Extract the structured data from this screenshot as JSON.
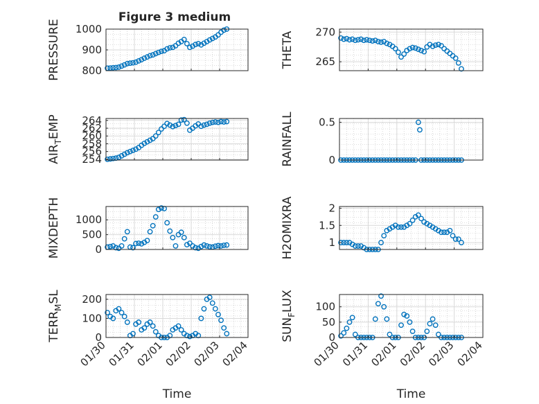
{
  "title": "Figure 3 medium",
  "colors": {
    "marker": "#0072BD",
    "axis": "#262626",
    "grid": "#d9d9d9",
    "minor_grid": "#bdbdbd"
  },
  "chart_data": [
    {
      "type": "scatter",
      "ylabel": "PRESSURE",
      "yticks": [
        "800",
        "900",
        "1000"
      ],
      "ylim": [
        800,
        1000
      ],
      "xlim": [
        0,
        5
      ],
      "xticks": [],
      "xlabel": "",
      "x": [
        0.05,
        0.15,
        0.25,
        0.35,
        0.45,
        0.55,
        0.65,
        0.75,
        0.85,
        0.95,
        1.05,
        1.15,
        1.25,
        1.35,
        1.45,
        1.55,
        1.65,
        1.75,
        1.85,
        1.95,
        2.05,
        2.15,
        2.25,
        2.35,
        2.45,
        2.55,
        2.65,
        2.75,
        2.85,
        2.95,
        3.05,
        3.15,
        3.25,
        3.35,
        3.45,
        3.55,
        3.65,
        3.75,
        3.85,
        3.95,
        4.05,
        4.15,
        4.25
      ],
      "y": [
        812,
        813,
        814,
        815,
        817,
        822,
        828,
        834,
        836,
        838,
        841,
        847,
        853,
        860,
        866,
        872,
        876,
        882,
        888,
        893,
        896,
        905,
        910,
        912,
        920,
        932,
        940,
        950,
        930,
        912,
        918,
        926,
        930,
        924,
        932,
        940,
        948,
        955,
        962,
        972,
        985,
        995,
        1000
      ]
    },
    {
      "type": "scatter",
      "ylabel": "THETA",
      "yticks": [
        "265",
        "270"
      ],
      "ylim": [
        263.5,
        270.5
      ],
      "xlim": [
        0,
        5
      ],
      "xticks": [],
      "xlabel": "",
      "x": [
        0.05,
        0.15,
        0.25,
        0.35,
        0.45,
        0.55,
        0.65,
        0.75,
        0.85,
        0.95,
        1.05,
        1.15,
        1.25,
        1.35,
        1.45,
        1.55,
        1.65,
        1.75,
        1.85,
        1.95,
        2.05,
        2.15,
        2.25,
        2.35,
        2.45,
        2.55,
        2.65,
        2.75,
        2.85,
        2.95,
        3.05,
        3.15,
        3.25,
        3.35,
        3.45,
        3.55,
        3.65,
        3.75,
        3.85,
        3.95,
        4.05,
        4.15,
        4.25
      ],
      "y": [
        269.0,
        268.8,
        268.9,
        268.7,
        268.8,
        268.6,
        268.7,
        268.8,
        268.6,
        268.7,
        268.6,
        268.5,
        268.6,
        268.4,
        268.3,
        268.4,
        268.1,
        267.9,
        267.6,
        267.2,
        266.6,
        265.8,
        266.3,
        266.9,
        267.2,
        267.4,
        267.3,
        267.1,
        266.9,
        266.7,
        267.5,
        267.9,
        267.6,
        267.8,
        267.9,
        267.7,
        267.2,
        266.8,
        266.4,
        266.0,
        265.6,
        264.8,
        263.8
      ]
    },
    {
      "type": "scatter",
      "ylabel": "AIR_TEMP",
      "yticks": [
        "254",
        "256",
        "258",
        "260",
        "262",
        "264"
      ],
      "ylim": [
        253.8,
        264.5
      ],
      "xlim": [
        0,
        5
      ],
      "xticks": [],
      "xlabel": "",
      "x": [
        0.05,
        0.15,
        0.25,
        0.35,
        0.45,
        0.55,
        0.65,
        0.75,
        0.85,
        0.95,
        1.05,
        1.15,
        1.25,
        1.35,
        1.45,
        1.55,
        1.65,
        1.75,
        1.85,
        1.95,
        2.05,
        2.15,
        2.25,
        2.35,
        2.45,
        2.55,
        2.65,
        2.75,
        2.85,
        2.95,
        3.05,
        3.15,
        3.25,
        3.35,
        3.45,
        3.55,
        3.65,
        3.75,
        3.85,
        3.95,
        4.05,
        4.15,
        4.25
      ],
      "y": [
        254.0,
        254.1,
        254.2,
        254.3,
        254.5,
        254.9,
        255.3,
        255.7,
        256.0,
        256.3,
        256.6,
        257.0,
        257.6,
        258.1,
        258.5,
        258.9,
        259.3,
        260.0,
        260.9,
        261.8,
        262.5,
        263.2,
        262.8,
        262.4,
        262.7,
        263.0,
        264.1,
        264.2,
        263.3,
        261.5,
        262.0,
        262.6,
        263.1,
        262.5,
        262.8,
        263.0,
        263.3,
        263.5,
        263.6,
        263.5,
        263.7,
        263.6,
        263.7
      ]
    },
    {
      "type": "scatter",
      "ylabel": "RAINFALL",
      "yticks": [
        "0",
        "0.5"
      ],
      "ylim": [
        0,
        0.55
      ],
      "xlim": [
        0,
        5
      ],
      "xticks": [],
      "xlabel": "",
      "x": [
        0.05,
        0.15,
        0.25,
        0.35,
        0.45,
        0.55,
        0.65,
        0.75,
        0.85,
        0.95,
        1.05,
        1.15,
        1.25,
        1.35,
        1.45,
        1.55,
        1.65,
        1.75,
        1.85,
        1.95,
        2.05,
        2.15,
        2.25,
        2.35,
        2.45,
        2.55,
        2.65,
        2.75,
        2.8,
        2.85,
        2.95,
        3.05,
        3.15,
        3.25,
        3.35,
        3.45,
        3.55,
        3.65,
        3.75,
        3.85,
        3.95,
        4.05,
        4.15,
        4.25
      ],
      "y": [
        0,
        0,
        0,
        0,
        0,
        0,
        0,
        0,
        0,
        0,
        0,
        0,
        0,
        0,
        0,
        0,
        0,
        0,
        0,
        0,
        0,
        0,
        0,
        0,
        0,
        0,
        0,
        0.5,
        0.4,
        0,
        0,
        0,
        0,
        0,
        0,
        0,
        0,
        0,
        0,
        0,
        0,
        0,
        0,
        0
      ]
    },
    {
      "type": "scatter",
      "ylabel": "MIXDEPTH",
      "yticks": [
        "0",
        "500",
        "1000"
      ],
      "ylim": [
        0,
        1450
      ],
      "xlim": [
        0,
        5
      ],
      "xticks": [],
      "xlabel": "",
      "x": [
        0.05,
        0.15,
        0.25,
        0.35,
        0.45,
        0.55,
        0.65,
        0.75,
        0.85,
        0.95,
        1.05,
        1.15,
        1.25,
        1.35,
        1.45,
        1.55,
        1.65,
        1.75,
        1.85,
        1.95,
        2.05,
        2.15,
        2.25,
        2.35,
        2.45,
        2.55,
        2.65,
        2.75,
        2.85,
        2.95,
        3.05,
        3.15,
        3.25,
        3.35,
        3.45,
        3.55,
        3.65,
        3.75,
        3.85,
        3.95,
        4.05,
        4.15,
        4.25
      ],
      "y": [
        80,
        100,
        120,
        60,
        40,
        120,
        360,
        600,
        80,
        60,
        200,
        210,
        190,
        240,
        300,
        600,
        800,
        1100,
        1350,
        1400,
        1380,
        900,
        620,
        400,
        120,
        500,
        580,
        400,
        160,
        210,
        120,
        60,
        40,
        100,
        150,
        120,
        90,
        80,
        110,
        130,
        120,
        140,
        150
      ]
    },
    {
      "type": "scatter",
      "ylabel": "H2OMIXRA",
      "yticks": [
        "1",
        "1.5",
        "2"
      ],
      "ylim": [
        0.8,
        2.05
      ],
      "xlim": [
        0,
        5
      ],
      "xticks": [],
      "xlabel": "",
      "x": [
        0.05,
        0.15,
        0.25,
        0.35,
        0.45,
        0.55,
        0.65,
        0.75,
        0.85,
        0.95,
        1.05,
        1.15,
        1.25,
        1.35,
        1.45,
        1.55,
        1.65,
        1.75,
        1.85,
        1.95,
        2.05,
        2.15,
        2.25,
        2.35,
        2.45,
        2.55,
        2.65,
        2.75,
        2.85,
        2.95,
        3.05,
        3.15,
        3.25,
        3.35,
        3.45,
        3.55,
        3.65,
        3.75,
        3.85,
        3.95,
        4.05,
        4.15,
        4.25
      ],
      "y": [
        1.0,
        1.0,
        1.0,
        1.0,
        0.95,
        0.9,
        0.9,
        0.9,
        0.85,
        0.8,
        0.8,
        0.8,
        0.8,
        0.8,
        1.0,
        1.2,
        1.35,
        1.4,
        1.45,
        1.5,
        1.45,
        1.45,
        1.45,
        1.5,
        1.55,
        1.65,
        1.75,
        1.8,
        1.7,
        1.6,
        1.55,
        1.5,
        1.45,
        1.4,
        1.35,
        1.3,
        1.3,
        1.3,
        1.35,
        1.2,
        1.1,
        1.1,
        1.0
      ]
    },
    {
      "type": "scatter",
      "ylabel": "TERR_MSL",
      "yticks": [
        "0",
        "100",
        "200"
      ],
      "ylim": [
        0,
        225
      ],
      "xlim": [
        0,
        5
      ],
      "xticks": [
        "01/30",
        "01/31",
        "02/01",
        "02/02",
        "02/03",
        "02/04"
      ],
      "xlabel": "Time",
      "x": [
        0.05,
        0.15,
        0.25,
        0.35,
        0.45,
        0.55,
        0.65,
        0.75,
        0.85,
        0.95,
        1.05,
        1.15,
        1.25,
        1.35,
        1.45,
        1.55,
        1.65,
        1.75,
        1.85,
        1.95,
        2.05,
        2.15,
        2.25,
        2.35,
        2.45,
        2.55,
        2.65,
        2.75,
        2.85,
        2.95,
        3.05,
        3.15,
        3.25,
        3.35,
        3.45,
        3.55,
        3.65,
        3.75,
        3.85,
        3.95,
        4.05,
        4.15,
        4.25
      ],
      "y": [
        130,
        110,
        100,
        140,
        150,
        130,
        110,
        80,
        10,
        20,
        70,
        80,
        40,
        50,
        70,
        80,
        60,
        30,
        10,
        0,
        0,
        0,
        10,
        40,
        50,
        60,
        40,
        20,
        10,
        5,
        10,
        20,
        10,
        100,
        150,
        200,
        210,
        180,
        150,
        120,
        90,
        50,
        20
      ]
    },
    {
      "type": "scatter",
      "ylabel": "SUN_FLUX",
      "yticks": [
        "0",
        "50",
        "100"
      ],
      "ylim": [
        0,
        140
      ],
      "xlim": [
        0,
        5
      ],
      "xticks": [
        "01/30",
        "01/31",
        "02/01",
        "02/02",
        "02/03",
        "02/04"
      ],
      "xlabel": "Time",
      "x": [
        0.05,
        0.15,
        0.25,
        0.35,
        0.45,
        0.55,
        0.65,
        0.75,
        0.85,
        0.95,
        1.05,
        1.15,
        1.25,
        1.35,
        1.45,
        1.55,
        1.65,
        1.75,
        1.85,
        1.95,
        2.05,
        2.15,
        2.25,
        2.35,
        2.45,
        2.55,
        2.65,
        2.75,
        2.85,
        2.95,
        3.05,
        3.15,
        3.25,
        3.35,
        3.45,
        3.55,
        3.65,
        3.75,
        3.85,
        3.95,
        4.05,
        4.15,
        4.25
      ],
      "y": [
        5,
        15,
        30,
        50,
        65,
        10,
        0,
        0,
        0,
        0,
        0,
        0,
        60,
        110,
        135,
        100,
        60,
        10,
        0,
        0,
        0,
        40,
        75,
        70,
        50,
        20,
        0,
        0,
        0,
        0,
        20,
        45,
        60,
        40,
        10,
        0,
        0,
        0,
        0,
        0,
        0,
        0,
        0
      ]
    }
  ]
}
